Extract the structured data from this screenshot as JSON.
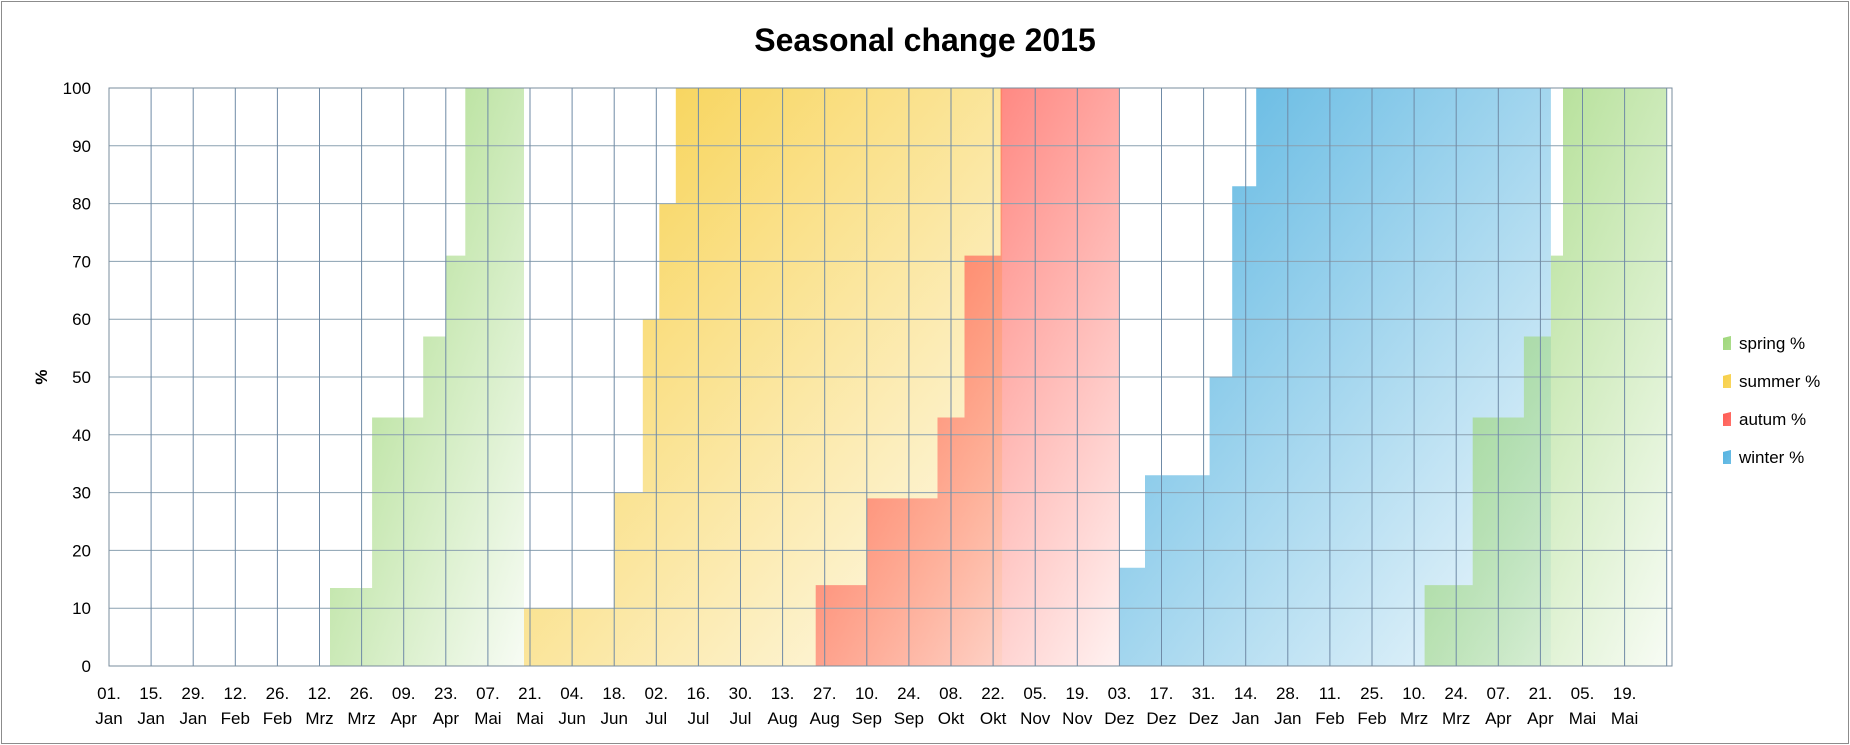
{
  "chart_data": {
    "type": "area",
    "title": "Seasonal change 2015",
    "xlabel": "",
    "ylabel": "%",
    "ylim": [
      0,
      100
    ],
    "y_ticks": [
      0,
      10,
      20,
      30,
      40,
      50,
      60,
      70,
      80,
      90,
      100
    ],
    "x_tick_labels": [
      [
        "01.",
        "Jan"
      ],
      [
        "15.",
        "Jan"
      ],
      [
        "29.",
        "Jan"
      ],
      [
        "12.",
        "Feb"
      ],
      [
        "26.",
        "Feb"
      ],
      [
        "12.",
        "Mrz"
      ],
      [
        "26.",
        "Mrz"
      ],
      [
        "09.",
        "Apr"
      ],
      [
        "23.",
        "Apr"
      ],
      [
        "07.",
        "Mai"
      ],
      [
        "21.",
        "Mai"
      ],
      [
        "04.",
        "Jun"
      ],
      [
        "18.",
        "Jun"
      ],
      [
        "02.",
        "Jul"
      ],
      [
        "16.",
        "Jul"
      ],
      [
        "30.",
        "Jul"
      ],
      [
        "13.",
        "Aug"
      ],
      [
        "27.",
        "Aug"
      ],
      [
        "10.",
        "Sep"
      ],
      [
        "24.",
        "Sep"
      ],
      [
        "08.",
        "Okt"
      ],
      [
        "22.",
        "Okt"
      ],
      [
        "05.",
        "Nov"
      ],
      [
        "19.",
        "Nov"
      ],
      [
        "03.",
        "Dez"
      ],
      [
        "17.",
        "Dez"
      ],
      [
        "31.",
        "Dez"
      ],
      [
        "14.",
        "Jan"
      ],
      [
        "28.",
        "Jan"
      ],
      [
        "11.",
        "Feb"
      ],
      [
        "25.",
        "Feb"
      ],
      [
        "10.",
        "Mrz"
      ],
      [
        "24.",
        "Mrz"
      ],
      [
        "07.",
        "Apr"
      ],
      [
        "21.",
        "Apr"
      ],
      [
        "05.",
        "Mai"
      ],
      [
        "19.",
        "Mai"
      ]
    ],
    "x_units": "days since 01. Jan",
    "x_max": 518,
    "grid": true,
    "legend_position": "right",
    "series": [
      {
        "name": "spring %",
        "color": "#9fd77a",
        "steps": [
          [
            73.5,
            13.5
          ],
          [
            87.5,
            43
          ],
          [
            104.5,
            57
          ],
          [
            112,
            71
          ],
          [
            118.5,
            100
          ],
          [
            138,
            100
          ]
        ],
        "end": 138
      },
      {
        "name": "summer %",
        "color": "#f7cf46",
        "steps": [
          [
            138,
            10
          ],
          [
            168,
            30
          ],
          [
            177.5,
            60
          ],
          [
            183,
            80
          ],
          [
            188.5,
            100
          ],
          [
            297,
            100
          ]
        ],
        "end": 297
      },
      {
        "name": "autum %",
        "color": "#ff5b52",
        "steps": [
          [
            235,
            14
          ],
          [
            252,
            29
          ],
          [
            275.5,
            43
          ],
          [
            284.5,
            71
          ],
          [
            296.5,
            100
          ],
          [
            336,
            100
          ]
        ],
        "end": 336
      },
      {
        "name": "winter %",
        "color": "#55b3e0",
        "steps": [
          [
            336,
            17
          ],
          [
            344.5,
            33
          ],
          [
            366,
            50
          ],
          [
            373.5,
            83
          ],
          [
            381.5,
            100
          ],
          [
            479.5,
            100
          ]
        ],
        "end": 479.5
      },
      {
        "name": "spring %",
        "color": "#9fd77a",
        "steps": [
          [
            437.5,
            14
          ],
          [
            453.5,
            43
          ],
          [
            470.5,
            57
          ],
          [
            479.5,
            71
          ],
          [
            483.5,
            100
          ],
          [
            518,
            100
          ]
        ],
        "end": 518
      }
    ]
  }
}
